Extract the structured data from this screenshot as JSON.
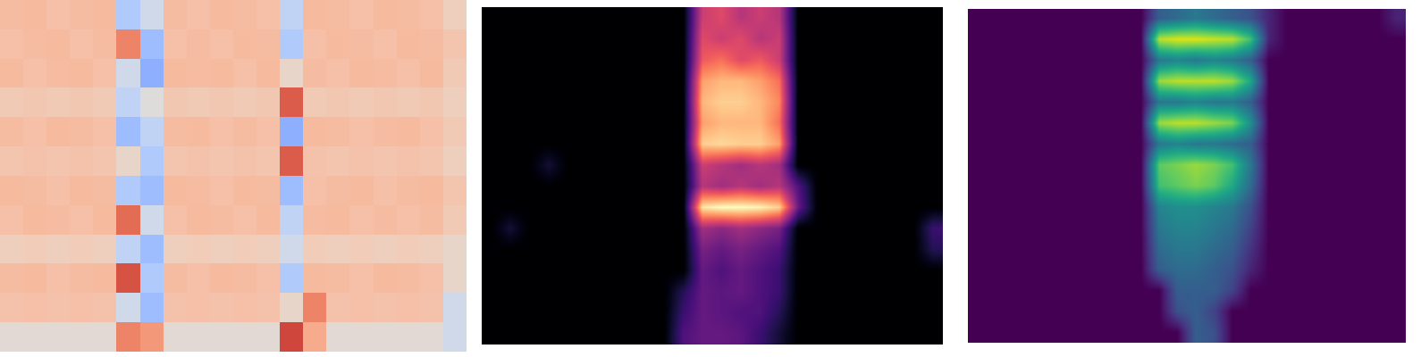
{
  "chart_data": [
    {
      "type": "heatmap",
      "color": "coolwarm",
      "color_range": [
        0,
        1
      ],
      "tick_labels": false,
      "cells": [
        [
          0.65,
          0.66,
          0.64,
          0.65,
          0.66,
          0.35,
          0.45,
          0.65,
          0.64,
          0.66,
          0.65,
          0.64,
          0.4,
          0.66,
          0.65,
          0.64,
          0.66,
          0.65,
          0.64,
          0.58
        ],
        [
          0.64,
          0.65,
          0.66,
          0.64,
          0.65,
          0.8,
          0.3,
          0.64,
          0.65,
          0.64,
          0.66,
          0.65,
          0.35,
          0.64,
          0.66,
          0.65,
          0.64,
          0.66,
          0.65,
          0.62
        ],
        [
          0.66,
          0.64,
          0.65,
          0.66,
          0.64,
          0.45,
          0.25,
          0.66,
          0.65,
          0.66,
          0.64,
          0.66,
          0.55,
          0.65,
          0.64,
          0.66,
          0.65,
          0.64,
          0.66,
          0.6
        ],
        [
          0.6,
          0.61,
          0.6,
          0.61,
          0.6,
          0.4,
          0.5,
          0.61,
          0.6,
          0.61,
          0.6,
          0.61,
          0.88,
          0.6,
          0.61,
          0.6,
          0.61,
          0.6,
          0.61,
          0.58
        ],
        [
          0.65,
          0.64,
          0.66,
          0.65,
          0.64,
          0.3,
          0.4,
          0.65,
          0.66,
          0.64,
          0.65,
          0.64,
          0.25,
          0.66,
          0.65,
          0.64,
          0.65,
          0.66,
          0.64,
          0.6
        ],
        [
          0.62,
          0.63,
          0.62,
          0.63,
          0.62,
          0.55,
          0.35,
          0.62,
          0.63,
          0.62,
          0.63,
          0.62,
          0.88,
          0.63,
          0.62,
          0.63,
          0.62,
          0.63,
          0.62,
          0.58
        ],
        [
          0.66,
          0.65,
          0.64,
          0.66,
          0.65,
          0.35,
          0.3,
          0.66,
          0.65,
          0.64,
          0.66,
          0.65,
          0.3,
          0.64,
          0.65,
          0.66,
          0.64,
          0.65,
          0.66,
          0.62
        ],
        [
          0.64,
          0.66,
          0.65,
          0.64,
          0.66,
          0.85,
          0.45,
          0.64,
          0.66,
          0.65,
          0.64,
          0.66,
          0.4,
          0.65,
          0.66,
          0.64,
          0.65,
          0.64,
          0.65,
          0.6
        ],
        [
          0.58,
          0.59,
          0.58,
          0.59,
          0.58,
          0.4,
          0.3,
          0.58,
          0.59,
          0.58,
          0.59,
          0.58,
          0.45,
          0.59,
          0.58,
          0.59,
          0.58,
          0.59,
          0.58,
          0.55
        ],
        [
          0.65,
          0.66,
          0.64,
          0.65,
          0.66,
          0.9,
          0.35,
          0.65,
          0.64,
          0.66,
          0.65,
          0.64,
          0.35,
          0.66,
          0.65,
          0.64,
          0.66,
          0.65,
          0.64,
          0.55
        ],
        [
          0.63,
          0.64,
          0.63,
          0.64,
          0.63,
          0.45,
          0.3,
          0.63,
          0.64,
          0.63,
          0.64,
          0.63,
          0.55,
          0.8,
          0.63,
          0.64,
          0.63,
          0.64,
          0.63,
          0.45
        ],
        [
          0.52,
          0.52,
          0.52,
          0.52,
          0.52,
          0.8,
          0.75,
          0.52,
          0.52,
          0.52,
          0.52,
          0.52,
          0.92,
          0.7,
          0.52,
          0.52,
          0.52,
          0.52,
          0.52,
          0.45
        ]
      ]
    },
    {
      "type": "heatmap",
      "color": "magma",
      "color_range": [
        0,
        1
      ],
      "tick_labels": false,
      "cells": [
        [
          0,
          0,
          0,
          0,
          0,
          0,
          0,
          0,
          0,
          0,
          0,
          0.55,
          0.6,
          0.5,
          0.55,
          0.5,
          0,
          0,
          0,
          0,
          0,
          0,
          0,
          0
        ],
        [
          0,
          0,
          0,
          0,
          0,
          0,
          0,
          0,
          0,
          0,
          0,
          0.6,
          0.55,
          0.6,
          0.5,
          0.55,
          0,
          0,
          0,
          0,
          0,
          0,
          0,
          0
        ],
        [
          0,
          0,
          0,
          0,
          0,
          0,
          0,
          0,
          0,
          0,
          0,
          0.65,
          0.7,
          0.6,
          0.65,
          0.55,
          0,
          0,
          0,
          0,
          0,
          0,
          0,
          0
        ],
        [
          0,
          0,
          0,
          0,
          0,
          0,
          0,
          0,
          0,
          0,
          0,
          0.8,
          0.85,
          0.85,
          0.8,
          0.7,
          0,
          0,
          0,
          0,
          0,
          0,
          0,
          0
        ],
        [
          0,
          0,
          0,
          0,
          0,
          0,
          0,
          0,
          0,
          0,
          0,
          0.85,
          0.9,
          0.9,
          0.85,
          0.75,
          0,
          0,
          0,
          0,
          0,
          0,
          0,
          0
        ],
        [
          0,
          0,
          0,
          0,
          0,
          0,
          0,
          0,
          0,
          0,
          0,
          0.8,
          0.85,
          0.85,
          0.85,
          0.7,
          0,
          0,
          0,
          0,
          0,
          0,
          0,
          0
        ],
        [
          0,
          0,
          0,
          0,
          0,
          0,
          0,
          0,
          0,
          0,
          0,
          0.9,
          0.92,
          0.9,
          0.9,
          0.8,
          0,
          0,
          0,
          0,
          0,
          0,
          0,
          0
        ],
        [
          0,
          0,
          0,
          0.1,
          0,
          0,
          0,
          0,
          0,
          0,
          0,
          0.55,
          0.5,
          0.45,
          0.5,
          0.45,
          0,
          0,
          0,
          0,
          0,
          0,
          0,
          0
        ],
        [
          0,
          0,
          0,
          0,
          0,
          0,
          0,
          0,
          0,
          0,
          0,
          0.5,
          0.45,
          0.5,
          0.45,
          0.5,
          0.25,
          0,
          0,
          0,
          0,
          0,
          0,
          0
        ],
        [
          0,
          0,
          0,
          0,
          0,
          0,
          0,
          0,
          0,
          0,
          0,
          0.95,
          1,
          1,
          0.98,
          0.9,
          0.3,
          0,
          0,
          0,
          0,
          0,
          0,
          0
        ],
        [
          0,
          0.1,
          0,
          0,
          0,
          0,
          0,
          0,
          0,
          0,
          0,
          0.45,
          0.4,
          0.45,
          0.4,
          0.35,
          0,
          0,
          0,
          0,
          0,
          0,
          0,
          0.2
        ],
        [
          0,
          0,
          0,
          0,
          0,
          0,
          0,
          0,
          0,
          0,
          0,
          0.35,
          0.3,
          0.35,
          0.3,
          0.25,
          0,
          0,
          0,
          0,
          0,
          0,
          0,
          0.15
        ],
        [
          0,
          0,
          0,
          0,
          0,
          0,
          0,
          0,
          0,
          0,
          0,
          0.3,
          0.25,
          0.3,
          0.25,
          0.2,
          0,
          0,
          0,
          0,
          0,
          0,
          0,
          0
        ],
        [
          0,
          0,
          0,
          0,
          0,
          0,
          0,
          0,
          0,
          0,
          0.15,
          0.3,
          0.28,
          0.3,
          0.25,
          0.2,
          0,
          0,
          0,
          0,
          0,
          0,
          0,
          0
        ],
        [
          0,
          0,
          0,
          0,
          0,
          0,
          0,
          0,
          0,
          0,
          0.2,
          0.3,
          0.28,
          0.25,
          0.25,
          0.15,
          0,
          0,
          0,
          0,
          0,
          0,
          0,
          0
        ],
        [
          0,
          0,
          0,
          0,
          0,
          0,
          0,
          0,
          0,
          0,
          0.25,
          0.3,
          0.3,
          0.28,
          0.2,
          0.1,
          0,
          0,
          0,
          0,
          0,
          0,
          0,
          0
        ]
      ]
    },
    {
      "type": "heatmap",
      "color": "viridis",
      "color_range": [
        0,
        1
      ],
      "tick_labels": false,
      "cells": [
        [
          0,
          0,
          0,
          0,
          0,
          0,
          0,
          0,
          0,
          0,
          0.3,
          0.35,
          0.4,
          0.35,
          0.3,
          0.25,
          0.1,
          0,
          0,
          0,
          0,
          0,
          0,
          0.1
        ],
        [
          0,
          0,
          0,
          0,
          0,
          0,
          0,
          0,
          0,
          0,
          0.9,
          0.95,
          0.95,
          0.92,
          0.9,
          0.7,
          0.1,
          0,
          0,
          0,
          0,
          0,
          0,
          0
        ],
        [
          0,
          0,
          0,
          0,
          0,
          0,
          0,
          0,
          0,
          0,
          0.4,
          0.45,
          0.4,
          0.45,
          0.4,
          0.3,
          0,
          0,
          0,
          0,
          0,
          0,
          0,
          0
        ],
        [
          0,
          0,
          0,
          0,
          0,
          0,
          0,
          0,
          0,
          0,
          0.85,
          0.9,
          0.9,
          0.9,
          0.85,
          0.6,
          0,
          0,
          0,
          0,
          0,
          0,
          0,
          0
        ],
        [
          0,
          0,
          0,
          0,
          0,
          0,
          0,
          0,
          0,
          0,
          0.4,
          0.4,
          0.45,
          0.4,
          0.4,
          0.3,
          0,
          0,
          0,
          0,
          0,
          0,
          0,
          0
        ],
        [
          0,
          0,
          0,
          0,
          0,
          0,
          0,
          0,
          0,
          0,
          0.85,
          0.9,
          0.9,
          0.85,
          0.8,
          0.5,
          0,
          0,
          0,
          0,
          0,
          0,
          0,
          0
        ],
        [
          0,
          0,
          0,
          0,
          0,
          0,
          0,
          0,
          0,
          0,
          0.4,
          0.45,
          0.4,
          0.4,
          0.35,
          0.3,
          0,
          0,
          0,
          0,
          0,
          0,
          0,
          0
        ],
        [
          0,
          0,
          0,
          0,
          0,
          0,
          0,
          0,
          0,
          0,
          0.75,
          0.8,
          0.85,
          0.8,
          0.7,
          0.4,
          0,
          0,
          0,
          0,
          0,
          0,
          0,
          0
        ],
        [
          0,
          0,
          0,
          0,
          0,
          0,
          0,
          0,
          0,
          0,
          0.7,
          0.75,
          0.8,
          0.75,
          0.6,
          0.35,
          0,
          0,
          0,
          0,
          0,
          0,
          0,
          0
        ],
        [
          0,
          0,
          0,
          0,
          0,
          0,
          0,
          0,
          0,
          0,
          0.45,
          0.5,
          0.5,
          0.45,
          0.4,
          0.25,
          0,
          0,
          0,
          0,
          0,
          0,
          0,
          0
        ],
        [
          0,
          0,
          0,
          0,
          0,
          0,
          0,
          0,
          0,
          0,
          0.4,
          0.45,
          0.45,
          0.4,
          0.35,
          0.2,
          0,
          0,
          0,
          0,
          0,
          0,
          0,
          0
        ],
        [
          0,
          0,
          0,
          0,
          0,
          0,
          0,
          0,
          0,
          0,
          0.35,
          0.4,
          0.4,
          0.35,
          0.3,
          0.15,
          0,
          0,
          0,
          0,
          0,
          0,
          0,
          0
        ],
        [
          0,
          0,
          0,
          0,
          0,
          0,
          0,
          0,
          0,
          0,
          0.3,
          0.35,
          0.35,
          0.3,
          0.25,
          0.1,
          0,
          0,
          0,
          0,
          0,
          0,
          0,
          0
        ],
        [
          0,
          0,
          0,
          0,
          0,
          0,
          0,
          0,
          0,
          0,
          0,
          0.3,
          0.3,
          0.3,
          0.2,
          0,
          0,
          0,
          0,
          0,
          0,
          0,
          0,
          0
        ],
        [
          0,
          0,
          0,
          0,
          0,
          0,
          0,
          0,
          0,
          0,
          0,
          0.25,
          0.3,
          0.2,
          0,
          0,
          0,
          0,
          0,
          0,
          0,
          0,
          0,
          0
        ],
        [
          0,
          0,
          0,
          0,
          0,
          0,
          0,
          0,
          0,
          0,
          0,
          0,
          0.3,
          0.25,
          0,
          0,
          0,
          0,
          0,
          0,
          0,
          0,
          0,
          0
        ]
      ]
    }
  ]
}
